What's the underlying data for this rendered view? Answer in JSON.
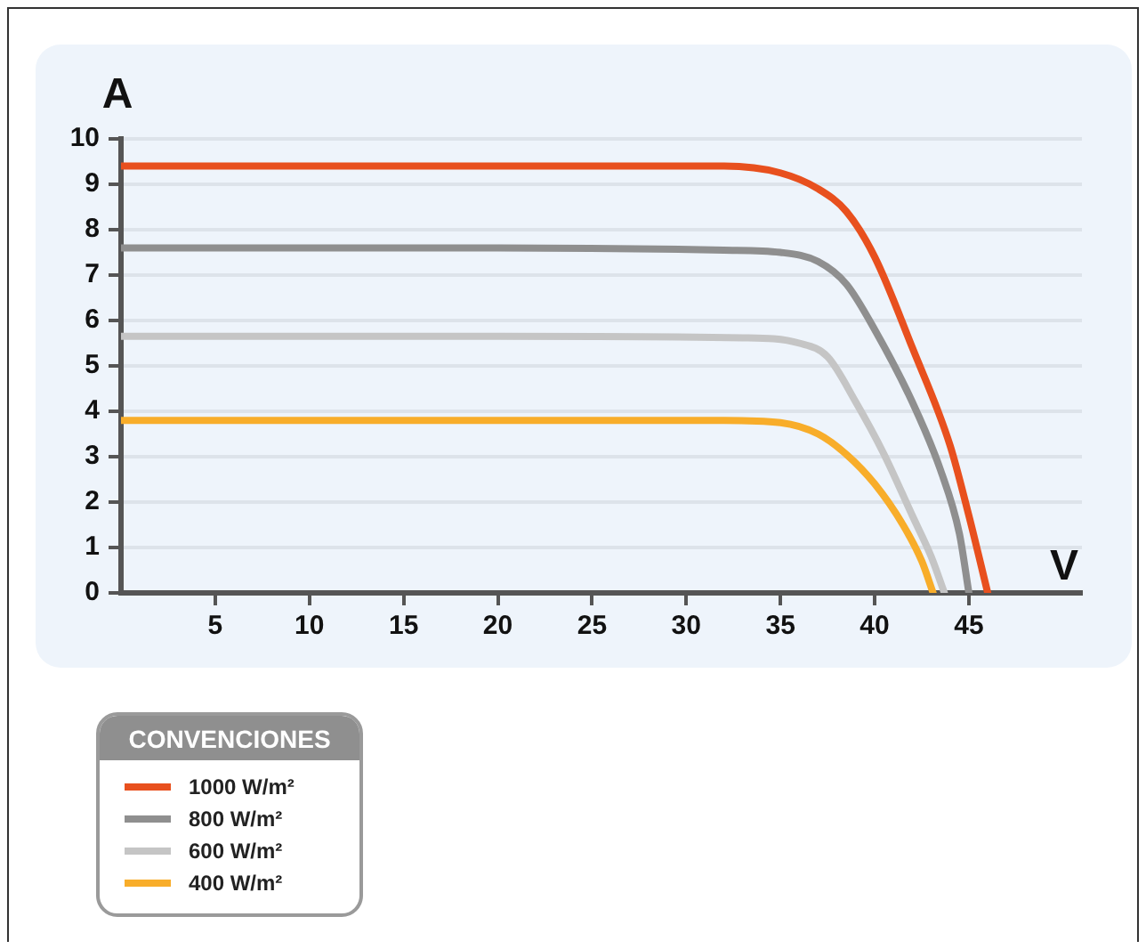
{
  "chart_data": {
    "type": "line",
    "xlabel": "V",
    "ylabel": "A",
    "legend_title": "CONVENCIONES",
    "legend": "bottom left",
    "grid": "y",
    "marker": "none",
    "line_style": "solid",
    "xlim": [
      0,
      51
    ],
    "xticks": [
      5,
      10,
      15,
      20,
      25,
      30,
      35,
      40,
      45
    ],
    "ylim": [
      0,
      10
    ],
    "yticks": [
      0,
      1,
      2,
      3,
      4,
      5,
      6,
      7,
      8,
      9,
      10
    ],
    "series": [
      {
        "name": "1000 W/m²",
        "color": "#e8501e",
        "x": [
          0,
          10,
          20,
          32,
          35,
          37,
          38.5,
          40,
          42,
          44,
          45,
          46
        ],
        "values": [
          9.4,
          9.4,
          9.4,
          9.4,
          9.25,
          8.9,
          8.4,
          7.4,
          5.4,
          3.25,
          1.7,
          0
        ]
      },
      {
        "name": "800 W/m²",
        "color": "#8f8f8f",
        "x": [
          0,
          10,
          20,
          32,
          35,
          37,
          38.5,
          40,
          42,
          43.5,
          44.5,
          45
        ],
        "values": [
          7.6,
          7.6,
          7.6,
          7.55,
          7.5,
          7.3,
          6.8,
          5.8,
          4.2,
          2.7,
          1.3,
          0
        ]
      },
      {
        "name": "600 W/m²",
        "color": "#c5c5c5",
        "x": [
          0,
          10,
          20,
          33,
          36,
          37.5,
          39,
          40.5,
          42,
          43,
          43.7
        ],
        "values": [
          5.65,
          5.65,
          5.65,
          5.62,
          5.5,
          5.2,
          4.2,
          3.05,
          1.7,
          0.8,
          0
        ]
      },
      {
        "name": "400 W/m²",
        "color": "#f8ad2a",
        "x": [
          0,
          10,
          20,
          32,
          35,
          37,
          38.5,
          40,
          41.5,
          42.5,
          43.1
        ],
        "values": [
          3.8,
          3.8,
          3.8,
          3.8,
          3.75,
          3.5,
          3.05,
          2.4,
          1.5,
          0.7,
          0
        ]
      }
    ]
  }
}
